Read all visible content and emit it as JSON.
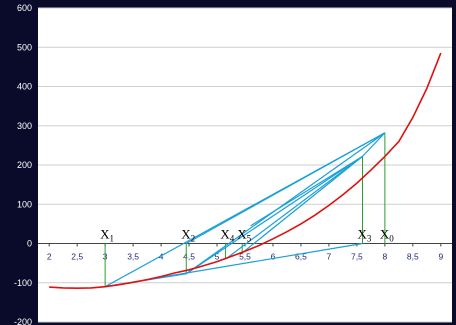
{
  "chart_data": {
    "type": "line",
    "title": "",
    "xlabel": "",
    "ylabel": "",
    "xlim": [
      1.8,
      9.2
    ],
    "ylim": [
      -200,
      600
    ],
    "grid": "horizontal",
    "colors": {
      "curve": "#e01010",
      "secant": "#1aa0d8",
      "drop": "#2aa02a",
      "background": "#0a0a2a"
    },
    "y_ticks": [
      "600",
      "500",
      "400",
      "300",
      "200",
      "100",
      "0",
      "-100",
      "-200"
    ],
    "y_tick_values": [
      600,
      500,
      400,
      300,
      200,
      100,
      0,
      -100,
      -200
    ],
    "x_ticks": [
      "2",
      "2,5",
      "3",
      "3,5",
      "4",
      "4,5",
      "5",
      "5,5",
      "6",
      "6,5",
      "7",
      "7,5",
      "8",
      "8,5",
      "9"
    ],
    "x_tick_values": [
      2,
      2.5,
      3,
      3.5,
      4,
      4.5,
      5,
      5.5,
      6,
      6.5,
      7,
      7.5,
      8,
      8.5,
      9
    ],
    "curve": {
      "x": [
        2,
        2.25,
        2.5,
        2.75,
        3,
        3.25,
        3.5,
        3.75,
        4,
        4.25,
        4.5,
        4.75,
        5,
        5.25,
        5.5,
        5.75,
        6,
        6.25,
        6.5,
        6.75,
        7,
        7.25,
        7.5,
        7.75,
        8,
        8.25,
        8.5,
        8.75,
        9
      ],
      "y": [
        -111,
        -113,
        -114,
        -113,
        -110,
        -105,
        -99,
        -92,
        -84,
        -75,
        -67,
        -57,
        -46,
        -33,
        -20,
        -5,
        12,
        30,
        50,
        72,
        97,
        124,
        154,
        187,
        222,
        260,
        321,
        395,
        485
      ]
    },
    "points": [
      {
        "name": "X0",
        "x": 8.0,
        "y": 282
      },
      {
        "name": "X1",
        "x": 3.0,
        "y": -110
      },
      {
        "name": "X2",
        "x": 4.45,
        "y": -77
      },
      {
        "name": "X3",
        "x": 7.6,
        "y": 222
      },
      {
        "name": "X4",
        "x": 5.15,
        "y": -40
      },
      {
        "name": "X5",
        "x": 5.45,
        "y": -24
      }
    ],
    "labels": [
      {
        "main": "X",
        "sub": "1",
        "x": 3.0
      },
      {
        "main": "X",
        "sub": "2",
        "x": 4.45
      },
      {
        "main": "X",
        "sub": "4",
        "x": 5.15
      },
      {
        "main": "X",
        "sub": "5",
        "x": 5.45
      },
      {
        "main": "X",
        "sub": "3",
        "x": 7.6
      },
      {
        "main": "X",
        "sub": "0",
        "x": 8.0
      }
    ]
  }
}
